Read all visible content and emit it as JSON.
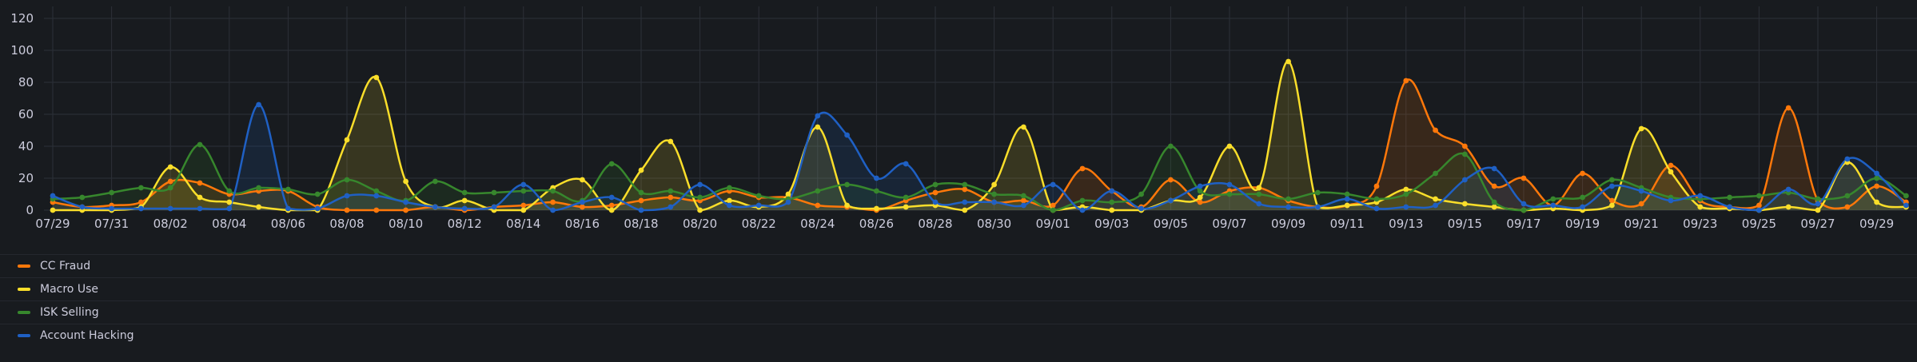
{
  "chart_data": {
    "type": "area",
    "x": [
      "07/29",
      "07/30",
      "07/31",
      "08/01",
      "08/02",
      "08/03",
      "08/04",
      "08/05",
      "08/06",
      "08/07",
      "08/08",
      "08/09",
      "08/10",
      "08/11",
      "08/12",
      "08/13",
      "08/14",
      "08/15",
      "08/16",
      "08/17",
      "08/18",
      "08/19",
      "08/20",
      "08/21",
      "08/22",
      "08/23",
      "08/24",
      "08/25",
      "08/26",
      "08/27",
      "08/28",
      "08/29",
      "08/30",
      "08/31",
      "09/01",
      "09/02",
      "09/03",
      "09/04",
      "09/05",
      "09/06",
      "09/07",
      "09/08",
      "09/09",
      "09/10",
      "09/11",
      "09/12",
      "09/13",
      "09/14",
      "09/15",
      "09/16",
      "09/17",
      "09/18",
      "09/19",
      "09/20",
      "09/21",
      "09/22",
      "09/23",
      "09/24",
      "09/25",
      "09/26",
      "09/27",
      "09/28",
      "09/29",
      "09/30"
    ],
    "x_tick_labels": [
      "07/29",
      "07/31",
      "08/02",
      "08/04",
      "08/06",
      "08/08",
      "08/10",
      "08/12",
      "08/14",
      "08/16",
      "08/18",
      "08/20",
      "08/22",
      "08/24",
      "08/26",
      "08/28",
      "08/30",
      "09/01",
      "09/03",
      "09/05",
      "09/07",
      "09/09",
      "09/11",
      "09/13",
      "09/15",
      "09/17",
      "09/19",
      "09/21",
      "09/23",
      "09/25",
      "09/27",
      "09/29"
    ],
    "y_ticks": [
      0,
      20,
      40,
      60,
      80,
      100,
      120
    ],
    "ylim": [
      0,
      125
    ],
    "grid": true,
    "legend_position": "bottom",
    "series": [
      {
        "name": "CC Fraud",
        "color": "#ff780a",
        "values": [
          5,
          2,
          3,
          5,
          18,
          17,
          10,
          12,
          12,
          2,
          0,
          0,
          0,
          2,
          0,
          2,
          3,
          5,
          2,
          3,
          6,
          8,
          6,
          12,
          8,
          8,
          3,
          2,
          0,
          6,
          11,
          13,
          5,
          6,
          3,
          26,
          12,
          2,
          19,
          5,
          12,
          14,
          6,
          2,
          3,
          15,
          81,
          50,
          40,
          15,
          20,
          3,
          23,
          6,
          4,
          28,
          6,
          2,
          3,
          64,
          6,
          2,
          15,
          5
        ]
      },
      {
        "name": "Macro Use",
        "color": "#fade2a",
        "values": [
          0,
          0,
          0,
          2,
          27,
          8,
          5,
          2,
          0,
          0,
          44,
          83,
          18,
          2,
          6,
          0,
          0,
          14,
          19,
          0,
          25,
          43,
          0,
          6,
          2,
          10,
          52,
          3,
          1,
          2,
          3,
          0,
          16,
          52,
          0,
          2,
          0,
          0,
          6,
          8,
          40,
          14,
          93,
          2,
          3,
          5,
          13,
          7,
          4,
          2,
          0,
          1,
          0,
          3,
          51,
          24,
          2,
          1,
          0,
          2,
          0,
          30,
          5,
          2
        ]
      },
      {
        "name": "ISK Selling",
        "color": "#37872d",
        "values": [
          7,
          8,
          11,
          14,
          14,
          41,
          12,
          14,
          13,
          10,
          19,
          12,
          6,
          18,
          11,
          11,
          12,
          12,
          6,
          29,
          11,
          12,
          8,
          14,
          9,
          7,
          12,
          16,
          12,
          8,
          16,
          16,
          10,
          9,
          0,
          6,
          5,
          10,
          40,
          12,
          10,
          10,
          7,
          11,
          10,
          7,
          10,
          23,
          35,
          5,
          0,
          7,
          8,
          19,
          14,
          8,
          7,
          8,
          9,
          11,
          7,
          9,
          20,
          9
        ]
      },
      {
        "name": "Account Hacking",
        "color": "#1f60c4",
        "values": [
          9,
          2,
          1,
          1,
          1,
          1,
          1,
          66,
          1,
          1,
          9,
          9,
          5,
          2,
          1,
          2,
          16,
          0,
          5,
          8,
          0,
          2,
          16,
          3,
          3,
          5,
          59,
          47,
          20,
          29,
          5,
          5,
          5,
          3,
          16,
          0,
          12,
          1,
          6,
          15,
          16,
          4,
          2,
          2,
          7,
          1,
          2,
          3,
          19,
          26,
          4,
          3,
          2,
          15,
          12,
          6,
          9,
          2,
          0,
          13,
          4,
          32,
          23,
          3
        ]
      }
    ]
  }
}
